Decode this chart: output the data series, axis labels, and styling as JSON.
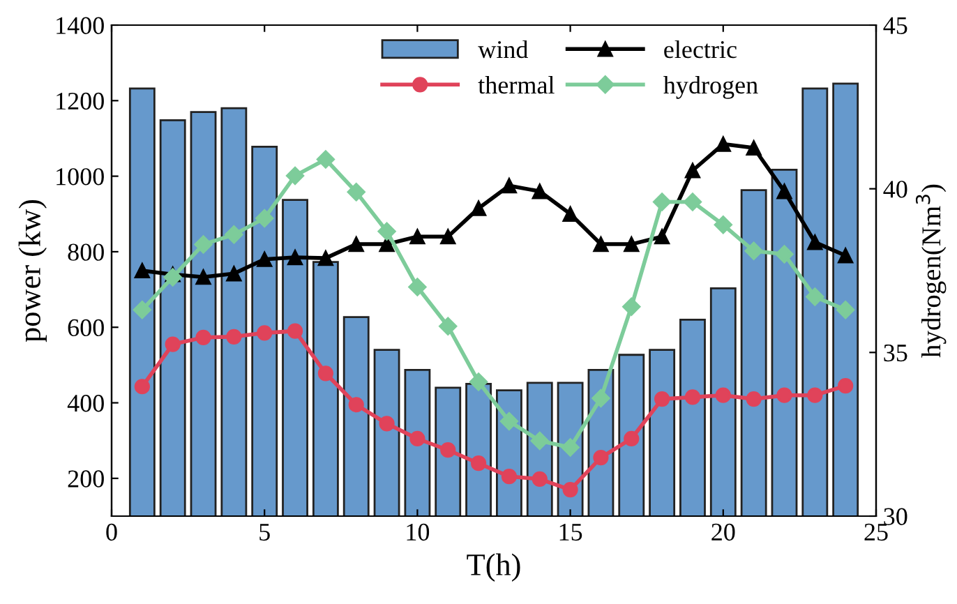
{
  "chart_data": {
    "type": "bar",
    "xlabel": "T(h)",
    "ylabel": "power (kw)",
    "y2label": "hydrogen(Nm$^{3}$)",
    "x": [
      1,
      2,
      3,
      4,
      5,
      6,
      7,
      8,
      9,
      10,
      11,
      12,
      13,
      14,
      15,
      16,
      17,
      18,
      19,
      20,
      21,
      22,
      23,
      24
    ],
    "xlim": [
      0,
      25
    ],
    "xticks": [
      0,
      5,
      10,
      15,
      20,
      25
    ],
    "ylim": [
      100,
      1400
    ],
    "yticks": [
      200,
      400,
      600,
      800,
      1000,
      1200,
      1400
    ],
    "y2lim": [
      30,
      45
    ],
    "y2ticks": [
      30,
      35,
      40,
      45
    ],
    "grid": false,
    "legend": "top",
    "line_style": "solid",
    "series": [
      {
        "name": "wind",
        "color": "#6699cc",
        "values": [
          1232,
          1148,
          1170,
          1180,
          1078,
          937,
          773,
          627,
          540,
          487,
          440,
          450,
          433,
          453,
          453,
          487,
          527,
          540,
          620,
          703,
          963,
          1017,
          1232,
          1245
        ]
      },
      {
        "name": "thermal",
        "type": "line",
        "marker": "circle",
        "color": "#e0435a",
        "values": [
          443,
          555,
          573,
          575,
          585,
          590,
          478,
          395,
          345,
          305,
          275,
          240,
          205,
          198,
          170,
          255,
          305,
          410,
          415,
          420,
          410,
          420,
          420,
          445
        ]
      },
      {
        "name": "electric",
        "type": "line",
        "marker": "triangle",
        "color": "#000000",
        "values": [
          750,
          740,
          733,
          742,
          780,
          785,
          783,
          820,
          820,
          840,
          840,
          915,
          975,
          960,
          900,
          820,
          820,
          840,
          1015,
          1085,
          1075,
          960,
          825,
          790
        ]
      },
      {
        "name": "hydrogen",
        "type": "line",
        "marker": "diamond",
        "axis": "y2",
        "color": "#7dcc9a",
        "values": [
          36.3,
          37.3,
          38.3,
          38.6,
          39.1,
          40.4,
          40.9,
          39.9,
          38.7,
          37.0,
          35.8,
          34.1,
          32.9,
          32.3,
          32.1,
          33.6,
          36.4,
          39.6,
          39.6,
          38.9,
          38.1,
          38.0,
          36.7,
          36.3
        ]
      }
    ]
  }
}
